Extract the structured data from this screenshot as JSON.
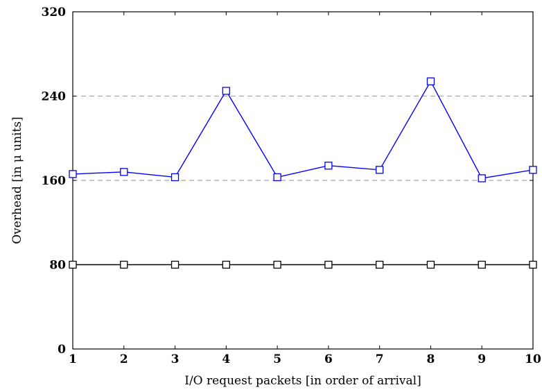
{
  "chart_data": {
    "type": "line",
    "title": "",
    "xlabel": "I/O request packets [in order of arrival]",
    "ylabel": "Overhead [in μ units]",
    "x": [
      1,
      2,
      3,
      4,
      5,
      6,
      7,
      8,
      9,
      10
    ],
    "xlim": [
      1,
      10
    ],
    "ylim": [
      0,
      320
    ],
    "xticks": [
      "1",
      "2",
      "3",
      "4",
      "5",
      "6",
      "7",
      "8",
      "9",
      "10"
    ],
    "yticks": [
      "0",
      "80",
      "160",
      "240",
      "320"
    ],
    "grid": "dashed horizontal lines at 160 and 240",
    "legend": "none",
    "series": [
      {
        "color": "#0000ff",
        "marker": "square",
        "values": [
          166,
          168,
          163,
          245,
          163,
          174,
          170,
          254,
          162,
          170
        ]
      },
      {
        "color": "#000000",
        "marker": "square",
        "values": [
          80,
          80,
          80,
          80,
          80,
          80,
          80,
          80,
          80,
          80
        ]
      }
    ]
  }
}
